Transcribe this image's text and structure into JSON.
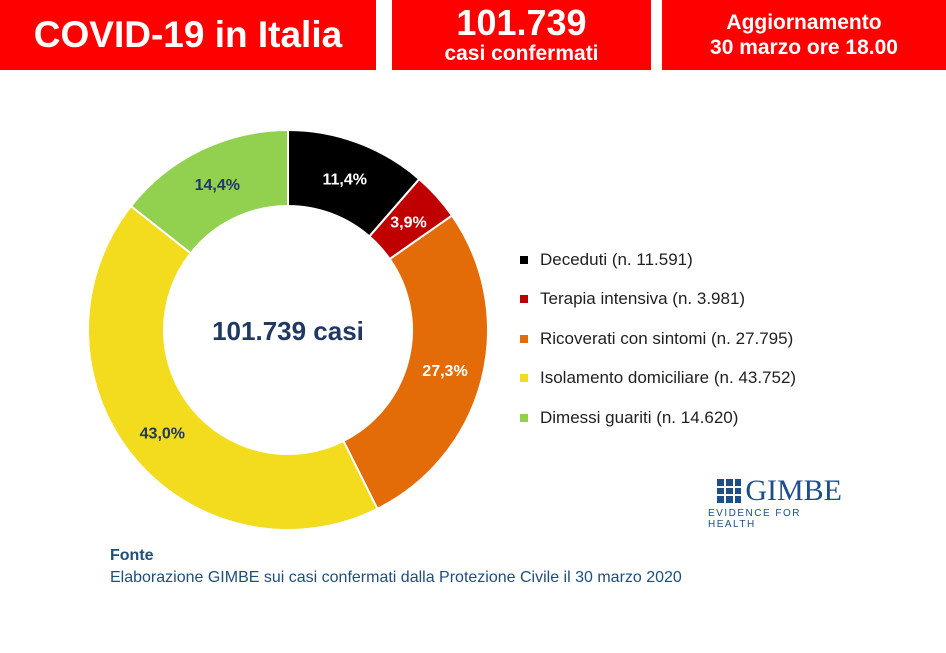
{
  "header": {
    "title": "COVID-19 in Italia",
    "cases_number": "101.739",
    "cases_label": "casi confermati",
    "update_line1": "Aggiornamento",
    "update_line2": "30 marzo ore 18.00",
    "background_color": "#ff0000"
  },
  "chart_data": {
    "type": "pie",
    "center_label": "101.739 casi",
    "slices": [
      {
        "legend": "Deceduti (n. 11.591)",
        "value": 11591,
        "percent_label": "11,4%",
        "color": "#000000",
        "label_color": "#ffffff"
      },
      {
        "legend": "Terapia intensiva (n. 3.981)",
        "value": 3981,
        "percent_label": "3,9%",
        "color": "#c00000",
        "label_color": "#ffffff"
      },
      {
        "legend": "Ricoverati con sintomi (n. 27.795)",
        "value": 27795,
        "percent_label": "27,3%",
        "color": "#e36c09",
        "label_color": "#ffffff"
      },
      {
        "legend": "Isolamento domiciliare (n. 43.752)",
        "value": 43752,
        "percent_label": "43,0%",
        "color": "#f2dc1d",
        "label_color": "#1f3864"
      },
      {
        "legend": "Dimessi guariti (n. 14.620)",
        "value": 14620,
        "percent_label": "14,4%",
        "color": "#92d050",
        "label_color": "#1f3864"
      }
    ],
    "legend_position": "right"
  },
  "logo": {
    "name": "GIMBE",
    "tagline": "EVIDENCE FOR HEALTH"
  },
  "source": {
    "title": "Fonte",
    "text": "Elaborazione GIMBE sui casi confermati dalla Protezione Civile il 30 marzo 2020"
  }
}
